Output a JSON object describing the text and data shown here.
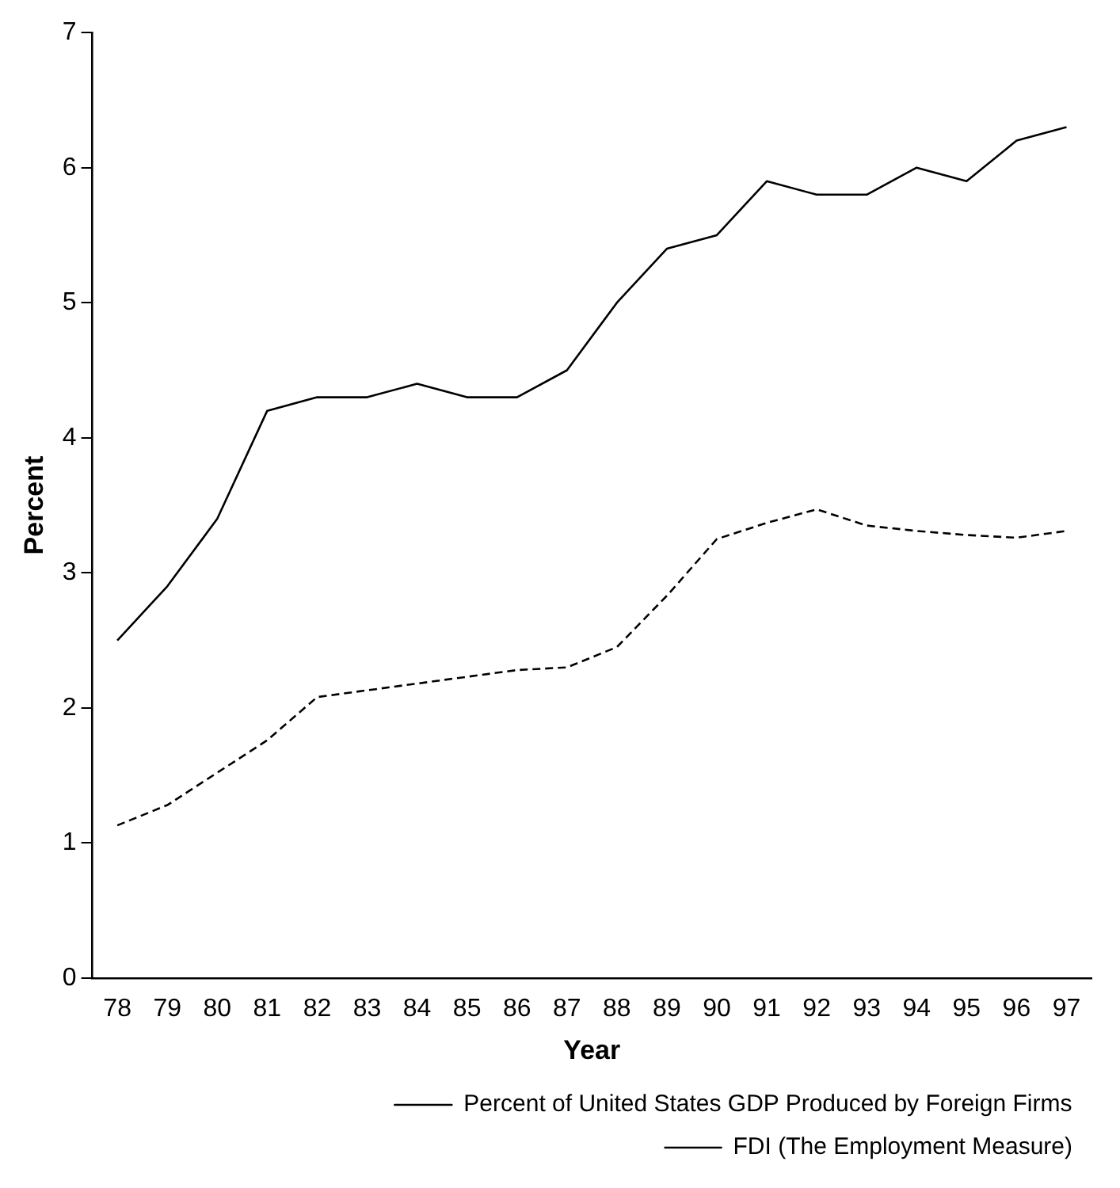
{
  "chart_data": {
    "type": "line",
    "xlabel": "Year",
    "ylabel": "Percent",
    "categories": [
      "78",
      "79",
      "80",
      "81",
      "82",
      "83",
      "84",
      "85",
      "86",
      "87",
      "88",
      "89",
      "90",
      "91",
      "92",
      "93",
      "94",
      "95",
      "96",
      "97"
    ],
    "series": [
      {
        "name": "Percent of United States GDP Produced by Foreign Firms",
        "color": "#000000",
        "line_style": "solid",
        "values": [
          2.5,
          2.9,
          3.4,
          4.2,
          4.3,
          4.3,
          4.4,
          4.3,
          4.3,
          4.5,
          5.0,
          5.4,
          5.5,
          5.9,
          5.8,
          5.8,
          6.0,
          5.9,
          6.2,
          6.3
        ]
      },
      {
        "name": "FDI (The Employment Measure)",
        "color": "#000000",
        "line_style": "dashed",
        "values": [
          1.13,
          1.28,
          1.52,
          1.76,
          2.08,
          2.13,
          2.18,
          2.23,
          2.28,
          2.3,
          2.45,
          2.83,
          3.25,
          3.37,
          3.47,
          3.35,
          3.31,
          3.28,
          3.26,
          3.31
        ]
      }
    ],
    "ylim": [
      0,
      7
    ],
    "yticks": [
      0,
      1,
      2,
      3,
      4,
      5,
      6,
      7
    ],
    "grid": false,
    "legend": "bottom",
    "marker": "none"
  }
}
